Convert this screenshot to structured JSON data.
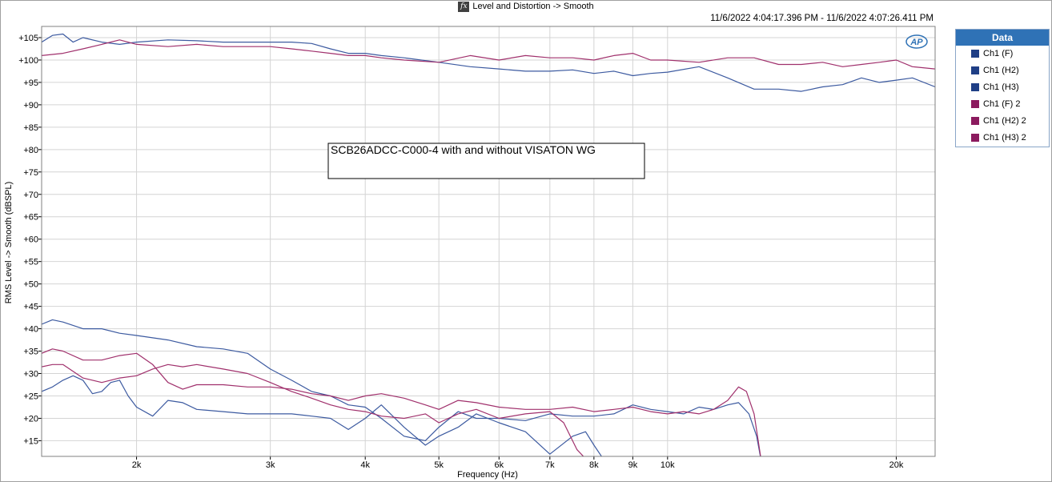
{
  "header": {
    "icon": "fx-icon",
    "title": "Level and Distortion -> Smooth"
  },
  "timerange": "11/6/2022 4:04:17.396 PM - 11/6/2022 4:07:26.411 PM",
  "legend": {
    "title": "Data",
    "items": [
      {
        "label": "Ch1 (F)",
        "color": "#1f3f86"
      },
      {
        "label": "Ch1 (H2)",
        "color": "#1f3f86"
      },
      {
        "label": "Ch1 (H3)",
        "color": "#1f3f86"
      },
      {
        "label": "Ch1 (F) 2",
        "color": "#8b1a5e"
      },
      {
        "label": "Ch1 (H2) 2",
        "color": "#8b1a5e"
      },
      {
        "label": "Ch1 (H3) 2",
        "color": "#8b1a5e"
      }
    ]
  },
  "annotation": "SCB26ADCC-C000-4 with and without VISATON WG",
  "chart_data": {
    "type": "line",
    "xlabel": "Frequency (Hz)",
    "ylabel": "RMS Level -> Smooth (dBSPL)",
    "x_scale": "log",
    "xlim": [
      1500,
      22500
    ],
    "ylim": [
      11.5,
      107.5
    ],
    "grid": true,
    "legend_position": "right",
    "x_ticks": [
      {
        "value": 2000,
        "label": "2k"
      },
      {
        "value": 3000,
        "label": "3k"
      },
      {
        "value": 4000,
        "label": "4k"
      },
      {
        "value": 5000,
        "label": "5k"
      },
      {
        "value": 6000,
        "label": "6k"
      },
      {
        "value": 7000,
        "label": "7k"
      },
      {
        "value": 8000,
        "label": "8k"
      },
      {
        "value": 9000,
        "label": "9k"
      },
      {
        "value": 10000,
        "label": "10k"
      },
      {
        "value": 20000,
        "label": "20k"
      }
    ],
    "y_ticks": [
      {
        "value": 15,
        "label": "+15"
      },
      {
        "value": 20,
        "label": "+20"
      },
      {
        "value": 25,
        "label": "+25"
      },
      {
        "value": 30,
        "label": "+30"
      },
      {
        "value": 35,
        "label": "+35"
      },
      {
        "value": 40,
        "label": "+40"
      },
      {
        "value": 45,
        "label": "+45"
      },
      {
        "value": 50,
        "label": "+50"
      },
      {
        "value": 55,
        "label": "+55"
      },
      {
        "value": 60,
        "label": "+60"
      },
      {
        "value": 65,
        "label": "+65"
      },
      {
        "value": 70,
        "label": "+70"
      },
      {
        "value": 75,
        "label": "+75"
      },
      {
        "value": 80,
        "label": "+80"
      },
      {
        "value": 85,
        "label": "+85"
      },
      {
        "value": 90,
        "label": "+90"
      },
      {
        "value": 95,
        "label": "+95"
      },
      {
        "value": 100,
        "label": "+100"
      },
      {
        "value": 105,
        "label": "+105"
      }
    ],
    "series": [
      {
        "name": "Ch1 (F)",
        "color": "#3c5aa0",
        "points": [
          [
            1500,
            104
          ],
          [
            1550,
            105.5
          ],
          [
            1600,
            105.8
          ],
          [
            1650,
            104
          ],
          [
            1700,
            105
          ],
          [
            1800,
            104
          ],
          [
            1900,
            103.5
          ],
          [
            2000,
            104
          ],
          [
            2200,
            104.5
          ],
          [
            2400,
            104.3
          ],
          [
            2600,
            104
          ],
          [
            2800,
            104
          ],
          [
            3000,
            104
          ],
          [
            3200,
            104
          ],
          [
            3400,
            103.7
          ],
          [
            3600,
            102.5
          ],
          [
            3800,
            101.5
          ],
          [
            4000,
            101.5
          ],
          [
            4200,
            101
          ],
          [
            4500,
            100.5
          ],
          [
            5000,
            99.5
          ],
          [
            5500,
            98.5
          ],
          [
            6000,
            98
          ],
          [
            6500,
            97.5
          ],
          [
            7000,
            97.5
          ],
          [
            7500,
            97.8
          ],
          [
            8000,
            97
          ],
          [
            8500,
            97.5
          ],
          [
            9000,
            96.5
          ],
          [
            9500,
            97
          ],
          [
            10000,
            97.3
          ],
          [
            11000,
            98.5
          ],
          [
            12000,
            96
          ],
          [
            13000,
            93.5
          ],
          [
            14000,
            93.5
          ],
          [
            15000,
            93
          ],
          [
            16000,
            94
          ],
          [
            17000,
            94.5
          ],
          [
            18000,
            96
          ],
          [
            19000,
            95
          ],
          [
            20000,
            95.5
          ],
          [
            21000,
            96
          ],
          [
            22500,
            94
          ]
        ]
      },
      {
        "name": "Ch1 (H2)",
        "color": "#3c5aa0",
        "points": [
          [
            1500,
            41
          ],
          [
            1550,
            42
          ],
          [
            1600,
            41.5
          ],
          [
            1700,
            40
          ],
          [
            1800,
            40
          ],
          [
            1900,
            39
          ],
          [
            2000,
            38.5
          ],
          [
            2200,
            37.5
          ],
          [
            2400,
            36
          ],
          [
            2600,
            35.5
          ],
          [
            2800,
            34.5
          ],
          [
            3000,
            31
          ],
          [
            3200,
            28.5
          ],
          [
            3400,
            26
          ],
          [
            3600,
            25
          ],
          [
            3800,
            23
          ],
          [
            4000,
            22.5
          ],
          [
            4200,
            20
          ],
          [
            4500,
            16
          ],
          [
            4800,
            15
          ],
          [
            5000,
            18
          ],
          [
            5300,
            21.5
          ],
          [
            5600,
            20
          ],
          [
            6000,
            20
          ],
          [
            6500,
            19.5
          ],
          [
            7000,
            21
          ],
          [
            7500,
            20.5
          ],
          [
            8000,
            20.5
          ],
          [
            8500,
            21
          ],
          [
            9000,
            23
          ],
          [
            9500,
            22
          ],
          [
            10000,
            21.5
          ],
          [
            10500,
            21
          ],
          [
            11000,
            22.5
          ],
          [
            11500,
            22
          ],
          [
            12000,
            23
          ],
          [
            12400,
            23.5
          ],
          [
            12800,
            21
          ],
          [
            13100,
            16
          ],
          [
            13300,
            10
          ]
        ]
      },
      {
        "name": "Ch1 (H3)",
        "color": "#3c5aa0",
        "points": [
          [
            1500,
            26
          ],
          [
            1550,
            27
          ],
          [
            1600,
            28.5
          ],
          [
            1650,
            29.5
          ],
          [
            1700,
            28.5
          ],
          [
            1750,
            25.5
          ],
          [
            1800,
            26
          ],
          [
            1850,
            28
          ],
          [
            1900,
            28.5
          ],
          [
            1950,
            25
          ],
          [
            2000,
            22.5
          ],
          [
            2100,
            20.5
          ],
          [
            2200,
            24
          ],
          [
            2300,
            23.5
          ],
          [
            2400,
            22
          ],
          [
            2600,
            21.5
          ],
          [
            2800,
            21
          ],
          [
            3000,
            21
          ],
          [
            3200,
            21
          ],
          [
            3400,
            20.5
          ],
          [
            3600,
            20
          ],
          [
            3800,
            17.5
          ],
          [
            4000,
            20
          ],
          [
            4200,
            23
          ],
          [
            4500,
            18
          ],
          [
            4800,
            14
          ],
          [
            5000,
            16
          ],
          [
            5300,
            18
          ],
          [
            5600,
            21
          ],
          [
            6000,
            19
          ],
          [
            6500,
            17
          ],
          [
            7000,
            12
          ],
          [
            7500,
            16
          ],
          [
            7800,
            17
          ],
          [
            8000,
            14
          ],
          [
            8300,
            10
          ]
        ]
      },
      {
        "name": "Ch1 (F) 2",
        "color": "#a0306c",
        "points": [
          [
            1500,
            101
          ],
          [
            1600,
            101.5
          ],
          [
            1700,
            102.5
          ],
          [
            1800,
            103.5
          ],
          [
            1900,
            104.5
          ],
          [
            2000,
            103.5
          ],
          [
            2200,
            103
          ],
          [
            2400,
            103.5
          ],
          [
            2600,
            103
          ],
          [
            2800,
            103
          ],
          [
            3000,
            103
          ],
          [
            3200,
            102.5
          ],
          [
            3400,
            102
          ],
          [
            3600,
            101.5
          ],
          [
            3800,
            101
          ],
          [
            4000,
            101
          ],
          [
            4200,
            100.5
          ],
          [
            4500,
            100
          ],
          [
            5000,
            99.5
          ],
          [
            5500,
            101
          ],
          [
            6000,
            100
          ],
          [
            6500,
            101
          ],
          [
            7000,
            100.5
          ],
          [
            7500,
            100.5
          ],
          [
            8000,
            100
          ],
          [
            8500,
            101
          ],
          [
            9000,
            101.5
          ],
          [
            9500,
            100
          ],
          [
            10000,
            100
          ],
          [
            11000,
            99.5
          ],
          [
            12000,
            100.5
          ],
          [
            13000,
            100.5
          ],
          [
            14000,
            99
          ],
          [
            15000,
            99
          ],
          [
            16000,
            99.5
          ],
          [
            17000,
            98.5
          ],
          [
            18000,
            99
          ],
          [
            19000,
            99.5
          ],
          [
            20000,
            100
          ],
          [
            21000,
            98.5
          ],
          [
            22500,
            98
          ]
        ]
      },
      {
        "name": "Ch1 (H2) 2",
        "color": "#a0306c",
        "points": [
          [
            1500,
            34.5
          ],
          [
            1550,
            35.5
          ],
          [
            1600,
            35
          ],
          [
            1700,
            33
          ],
          [
            1800,
            33
          ],
          [
            1900,
            34
          ],
          [
            2000,
            34.5
          ],
          [
            2100,
            32
          ],
          [
            2200,
            28
          ],
          [
            2300,
            26.5
          ],
          [
            2400,
            27.5
          ],
          [
            2600,
            27.5
          ],
          [
            2800,
            27
          ],
          [
            3000,
            27
          ],
          [
            3200,
            26.5
          ],
          [
            3400,
            25.5
          ],
          [
            3600,
            25
          ],
          [
            3800,
            24
          ],
          [
            4000,
            25
          ],
          [
            4200,
            25.5
          ],
          [
            4500,
            24.5
          ],
          [
            4800,
            23
          ],
          [
            5000,
            22
          ],
          [
            5300,
            24
          ],
          [
            5600,
            23.5
          ],
          [
            6000,
            22.5
          ],
          [
            6500,
            22
          ],
          [
            7000,
            22
          ],
          [
            7500,
            22.5
          ],
          [
            8000,
            21.5
          ],
          [
            8500,
            22
          ],
          [
            9000,
            22.5
          ],
          [
            9500,
            21.5
          ],
          [
            10000,
            21
          ],
          [
            10500,
            21.5
          ],
          [
            11000,
            21
          ],
          [
            11500,
            22
          ],
          [
            12000,
            24
          ],
          [
            12400,
            27
          ],
          [
            12700,
            26
          ],
          [
            13000,
            21
          ],
          [
            13300,
            10
          ]
        ]
      },
      {
        "name": "Ch1 (H3) 2",
        "color": "#a0306c",
        "points": [
          [
            1500,
            31.5
          ],
          [
            1550,
            32
          ],
          [
            1600,
            32
          ],
          [
            1700,
            29
          ],
          [
            1800,
            28
          ],
          [
            1900,
            29
          ],
          [
            2000,
            29.5
          ],
          [
            2100,
            31
          ],
          [
            2200,
            32
          ],
          [
            2300,
            31.5
          ],
          [
            2400,
            32
          ],
          [
            2600,
            31
          ],
          [
            2800,
            30
          ],
          [
            3000,
            28
          ],
          [
            3200,
            26
          ],
          [
            3400,
            24.5
          ],
          [
            3600,
            23
          ],
          [
            3800,
            22
          ],
          [
            4000,
            21.5
          ],
          [
            4200,
            20.5
          ],
          [
            4500,
            20
          ],
          [
            4800,
            21
          ],
          [
            5000,
            19
          ],
          [
            5300,
            21
          ],
          [
            5600,
            22
          ],
          [
            6000,
            20
          ],
          [
            6500,
            21
          ],
          [
            7000,
            21.5
          ],
          [
            7300,
            19
          ],
          [
            7600,
            13
          ],
          [
            7900,
            10
          ]
        ]
      }
    ]
  }
}
